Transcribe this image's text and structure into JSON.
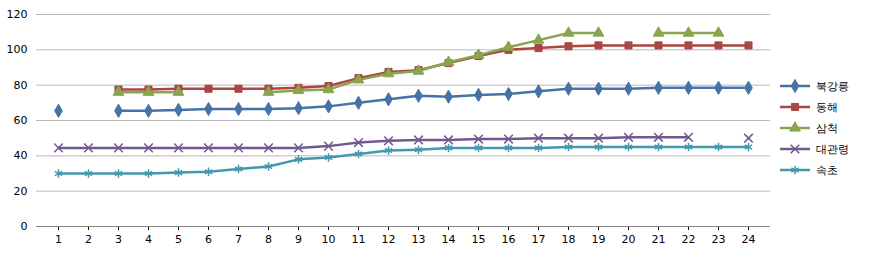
{
  "chart_data": {
    "type": "line",
    "categories": [
      "1",
      "2",
      "3",
      "4",
      "5",
      "6",
      "7",
      "8",
      "9",
      "10",
      "11",
      "12",
      "13",
      "14",
      "15",
      "16",
      "17",
      "18",
      "19",
      "20",
      "21",
      "22",
      "23",
      "24"
    ],
    "ylim": [
      0,
      120
    ],
    "yticks": [
      0,
      20,
      40,
      60,
      80,
      100,
      120
    ],
    "grid": true,
    "legend": "right",
    "series": [
      {
        "name": "북강릉",
        "color": "#4572A7",
        "marker": "diamond",
        "values": [
          65.5,
          null,
          65.5,
          65.5,
          66,
          66.5,
          66.5,
          66.5,
          67,
          68,
          70,
          72,
          74,
          73.5,
          74.5,
          75,
          76.5,
          78,
          78,
          78,
          78.5,
          78.5,
          78.5,
          78.5
        ]
      },
      {
        "name": "동해",
        "color": "#AA4643",
        "marker": "square",
        "values": [
          null,
          null,
          77.5,
          77.5,
          78,
          78,
          78,
          78,
          78.5,
          79.5,
          84,
          87.5,
          88.5,
          92.5,
          96.5,
          100,
          101,
          102,
          102.5,
          102.5,
          102.5,
          102.5,
          102.5,
          102.5
        ]
      },
      {
        "name": "삼척",
        "color": "#89A54E",
        "marker": "triangle",
        "values": [
          null,
          null,
          76,
          76,
          76,
          null,
          null,
          76,
          77,
          77.5,
          83,
          86.5,
          88,
          93,
          97,
          101.5,
          105.5,
          109.5,
          109.5,
          null,
          109.5,
          109.5,
          109.5,
          null
        ]
      },
      {
        "name": "대관령",
        "color": "#71588F",
        "marker": "times",
        "values": [
          44.5,
          44.5,
          44.5,
          44.5,
          44.5,
          44.5,
          44.5,
          44.5,
          44.5,
          45.5,
          47.5,
          48.5,
          49,
          49,
          49.5,
          49.5,
          50,
          50,
          50,
          50.5,
          50.5,
          50.5,
          null,
          50
        ]
      },
      {
        "name": "속초",
        "color": "#4198AF",
        "marker": "asterisk",
        "values": [
          30,
          30,
          30,
          30,
          30.5,
          31,
          32.5,
          34,
          38,
          39,
          41,
          43,
          43.5,
          44.5,
          44.5,
          44.5,
          44.5,
          45,
          45,
          45,
          45,
          45,
          45,
          45
        ]
      }
    ]
  }
}
